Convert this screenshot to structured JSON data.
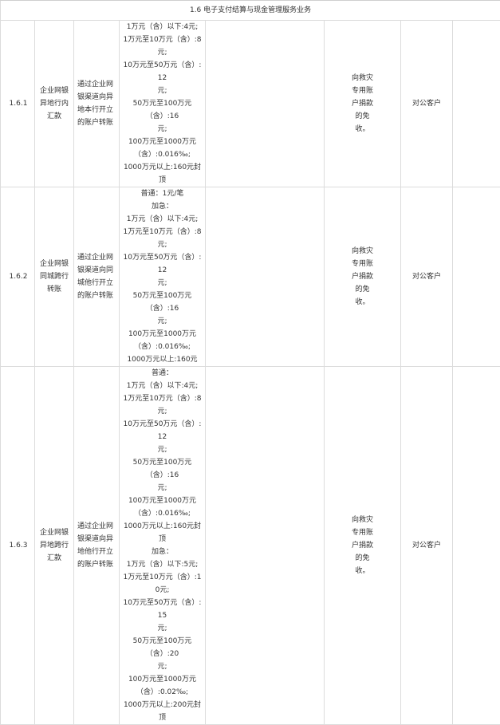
{
  "section_title": "1.6 电子支付结算与现金管理服务业务",
  "rows": [
    {
      "code": "1.6.1",
      "name": "企业网银异地行内汇款",
      "description": "通过企业网银渠道向异地本行开立的账户转账",
      "price_lines": [
        "1万元（含）以下:4元;",
        "1万元至10万元（含）:8元;",
        "10万元至50万元（含）:12",
        "元;",
        "50万元至100万元（含）:16",
        "元;",
        "100万元至1000万元",
        "（含）:0.016‰;",
        "1000万元以上:160元封顶"
      ],
      "discount": "向救灾专用账户捐款的免收。",
      "target": "对公客户"
    },
    {
      "code": "1.6.2",
      "name": "企业网银同城跨行转账",
      "description": "通过企业网银渠道向同城他行开立的账户转账",
      "price_lines": [
        "普通：1元/笔",
        "加急：",
        "1万元（含）以下:4元;",
        "1万元至10万元（含）:8元;",
        "10万元至50万元（含）:12",
        "元;",
        "50万元至100万元（含）:16",
        "元;",
        "100万元至1000万元",
        "（含）:0.016‰;",
        "1000万元以上:160元"
      ],
      "discount": "向救灾专用账户捐款的免收。",
      "target": "对公客户"
    },
    {
      "code": "1.6.3",
      "name": "企业网银异地跨行汇款",
      "description": "通过企业网银渠道向异地他行开立的账户转账",
      "price_lines": [
        "普通：",
        "1万元（含）以下:4元;",
        "1万元至10万元（含）:8元;",
        "10万元至50万元（含）:12",
        "元;",
        "50万元至100万元（含）:16",
        "元;",
        "100万元至1000万元",
        "（含）:0.016‰;",
        "1000万元以上:160元封顶",
        "加急：",
        "1万元（含）以下:5元;",
        "1万元至10万元（含）:10元;",
        "10万元至50万元（含）:15",
        "元;",
        "50万元至100万元（含）:20",
        "元;",
        "100万元至1000万元",
        "（含）:0.02‰;",
        "1000万元以上:200元封顶"
      ],
      "discount": "向救灾专用账户捐款的免收。",
      "target": "对公客户"
    }
  ]
}
